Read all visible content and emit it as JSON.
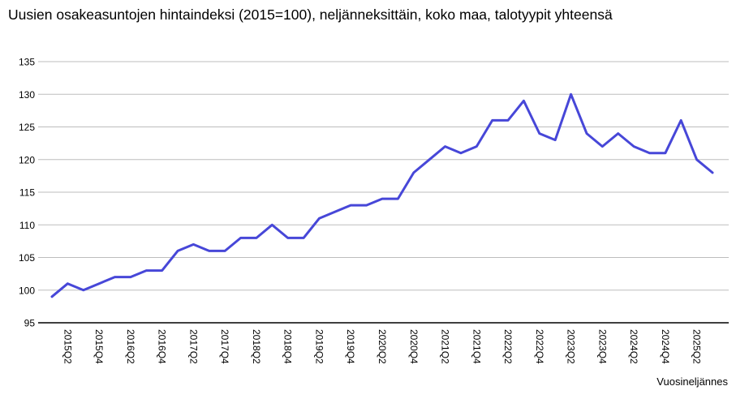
{
  "title": "Uusien osakeasuntojen hintaindeksi (2015=100), neljänneksittäin, koko maa, talotyypit yhteensä",
  "chart_data": {
    "type": "line",
    "title": "Uusien osakeasuntojen hintaindeksi (2015=100), neljänneksittäin, koko maa, talotyypit yhteensä",
    "xlabel": "Vuosineljännes",
    "ylabel": "",
    "ylim": [
      95,
      135
    ],
    "yticks": [
      95,
      100,
      105,
      110,
      115,
      120,
      125,
      130,
      135
    ],
    "grid": true,
    "legend_position": "none",
    "categories": [
      "2015Q1",
      "2015Q2",
      "2015Q3",
      "2015Q4",
      "2016Q1",
      "2016Q2",
      "2016Q3",
      "2016Q4",
      "2017Q1",
      "2017Q2",
      "2017Q3",
      "2017Q4",
      "2018Q1",
      "2018Q2",
      "2018Q3",
      "2018Q4",
      "2019Q1",
      "2019Q2",
      "2019Q3",
      "2019Q4",
      "2020Q1",
      "2020Q2",
      "2020Q3",
      "2020Q4",
      "2021Q1",
      "2021Q2",
      "2021Q3",
      "2021Q4",
      "2022Q1",
      "2022Q2",
      "2022Q3",
      "2022Q4",
      "2023Q1",
      "2023Q2",
      "2023Q3",
      "2023Q4",
      "2024Q1",
      "2024Q2",
      "2024Q3",
      "2024Q4",
      "2025Q1",
      "2025Q2",
      "2025Q3"
    ],
    "x_tick_labels": [
      "2015Q2",
      "2015Q4",
      "2016Q2",
      "2016Q4",
      "2017Q2",
      "2017Q4",
      "2018Q2",
      "2018Q4",
      "2019Q2",
      "2019Q4",
      "2020Q2",
      "2020Q4",
      "2021Q2",
      "2021Q4",
      "2022Q2",
      "2022Q4",
      "2023Q2",
      "2023Q4",
      "2024Q2",
      "2024Q4",
      "2025Q2"
    ],
    "x_tick_start": 1,
    "x_tick_every": 2,
    "series": [
      {
        "values": [
          99,
          101,
          100,
          101,
          102,
          102,
          103,
          103,
          106,
          107,
          106,
          106,
          108,
          108,
          110,
          108,
          108,
          111,
          112,
          113,
          113,
          114,
          114,
          118,
          120,
          122,
          121,
          122,
          126,
          126,
          129,
          124,
          123,
          130,
          124,
          122,
          124,
          122,
          121,
          121,
          126,
          120,
          118
        ]
      }
    ]
  },
  "colors": {
    "line": "#4747D8",
    "gridline": "#bdbdbd",
    "axis_line": "#000000",
    "text": "#000000"
  }
}
